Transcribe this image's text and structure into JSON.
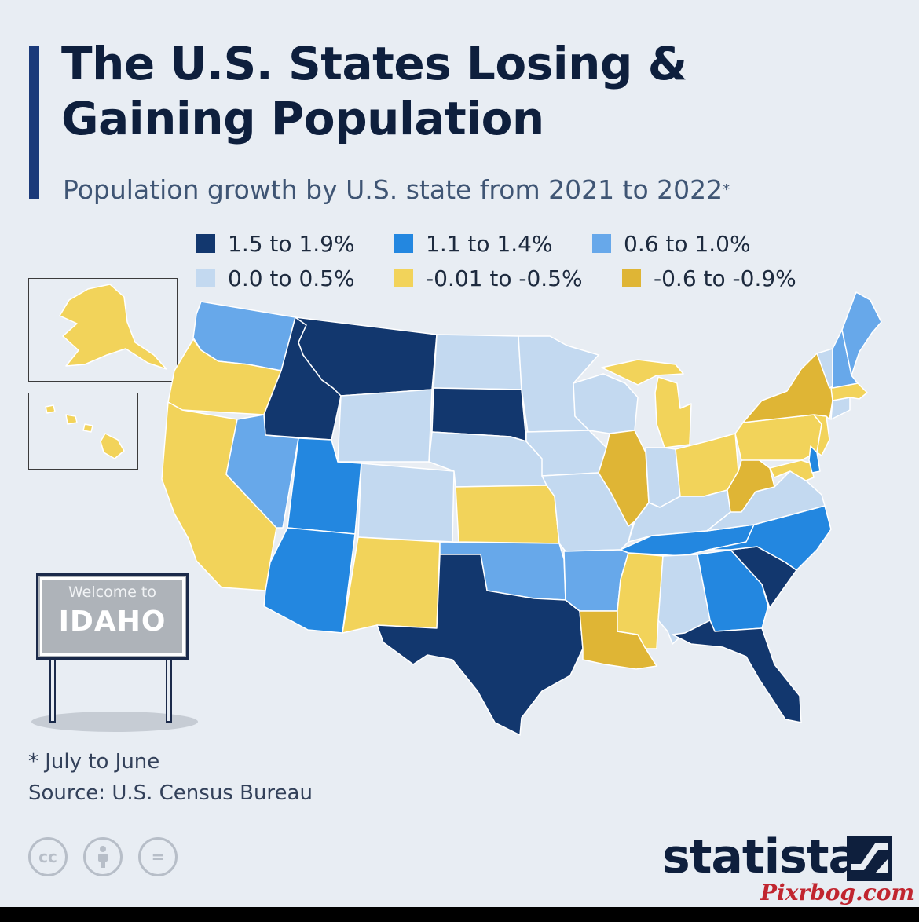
{
  "header": {
    "title": "The U.S. States Losing & Gaining Population",
    "subtitle": "Population growth by U.S. state from 2021 to 2022",
    "subtitle_mark": "*"
  },
  "legend": {
    "items": [
      {
        "label": "1.5 to 1.9%",
        "color": "#12376e"
      },
      {
        "label": "1.1 to 1.4%",
        "color": "#2387e0"
      },
      {
        "label": "0.6 to 1.0%",
        "color": "#67a8ea"
      },
      {
        "label": "0.0 to 0.5%",
        "color": "#c3d9f0"
      },
      {
        "label": "-0.01 to -0.5%",
        "color": "#f2d35a"
      },
      {
        "label": "-0.6 to -0.9%",
        "color": "#dfb535"
      }
    ]
  },
  "map": {
    "legend_placement": "top",
    "insets": [
      "Alaska",
      "Hawaii"
    ],
    "states": {
      "WA": "0.6 to 1.0%",
      "OR": "-0.01 to -0.5%",
      "CA": "-0.01 to -0.5%",
      "ID": "1.5 to 1.9%",
      "MT": "1.5 to 1.9%",
      "NV": "0.6 to 1.0%",
      "UT": "1.1 to 1.4%",
      "AZ": "1.1 to 1.4%",
      "WY": "0.0 to 0.5%",
      "CO": "0.0 to 0.5%",
      "NM": "-0.01 to -0.5%",
      "ND": "0.0 to 0.5%",
      "SD": "1.5 to 1.9%",
      "NE": "0.0 to 0.5%",
      "KS": "-0.01 to -0.5%",
      "OK": "0.6 to 1.0%",
      "TX": "1.5 to 1.9%",
      "MN": "0.0 to 0.5%",
      "IA": "0.0 to 0.5%",
      "MO": "0.0 to 0.5%",
      "AR": "0.6 to 1.0%",
      "LA": "-0.6 to -0.9%",
      "WI": "0.0 to 0.5%",
      "IL": "-0.6 to -0.9%",
      "MI": "-0.01 to -0.5%",
      "IN": "0.0 to 0.5%",
      "OH": "-0.01 to -0.5%",
      "KY": "0.0 to 0.5%",
      "TN": "1.1 to 1.4%",
      "MS": "-0.01 to -0.5%",
      "AL": "0.0 to 0.5%",
      "GA": "1.1 to 1.4%",
      "FL": "1.5 to 1.9%",
      "SC": "1.5 to 1.9%",
      "NC": "1.1 to 1.4%",
      "VA": "0.0 to 0.5%",
      "WV": "-0.6 to -0.9%",
      "PA": "-0.01 to -0.5%",
      "NY": "-0.6 to -0.9%",
      "NJ": "-0.01 to -0.5%",
      "DE": "1.1 to 1.4%",
      "MD": "-0.01 to -0.5%",
      "CT": "0.0 to 0.5%",
      "MA": "-0.01 to -0.5%",
      "VT": "0.0 to 0.5%",
      "NH": "0.6 to 1.0%",
      "ME": "0.6 to 1.0%",
      "AK": "-0.01 to -0.5%",
      "HI": "-0.01 to -0.5%"
    }
  },
  "sign": {
    "small": "Welcome to",
    "big": "IDAHO"
  },
  "footer": {
    "note": "* July to June",
    "source": "Source: U.S. Census Bureau",
    "license_icons": [
      "creative-commons-icon",
      "attribution-icon",
      "no-derivatives-icon"
    ],
    "cc_glyph": "cc",
    "eq_glyph": "="
  },
  "brand": {
    "name": "statista",
    "watermark": "Pixrbog.com"
  }
}
